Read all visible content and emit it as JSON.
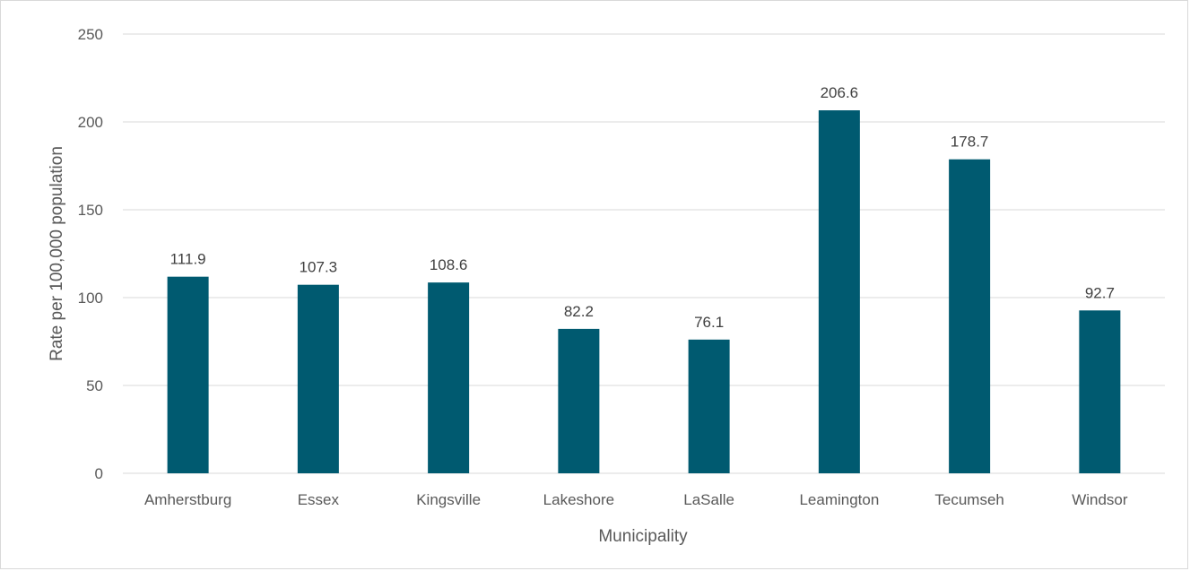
{
  "chart_data": {
    "type": "bar",
    "title": "",
    "xlabel": "Municipality",
    "ylabel": "Rate per 100,000 population",
    "categories": [
      "Amherstburg",
      "Essex",
      "Kingsville",
      "Lakeshore",
      "LaSalle",
      "Leamington",
      "Tecumseh",
      "Windsor"
    ],
    "values": [
      111.9,
      107.3,
      108.6,
      82.2,
      76.1,
      206.6,
      178.7,
      92.7
    ],
    "data_labels": [
      "111.9",
      "107.3",
      "108.6",
      "82.2",
      "76.1",
      "206.6",
      "178.7",
      "92.7"
    ],
    "ylim": [
      0,
      250
    ],
    "yticks": [
      0,
      50,
      100,
      150,
      200,
      250
    ],
    "grid": true,
    "legend": "none",
    "bar_color": "#005a70",
    "grid_color": "#d9d9d9"
  }
}
